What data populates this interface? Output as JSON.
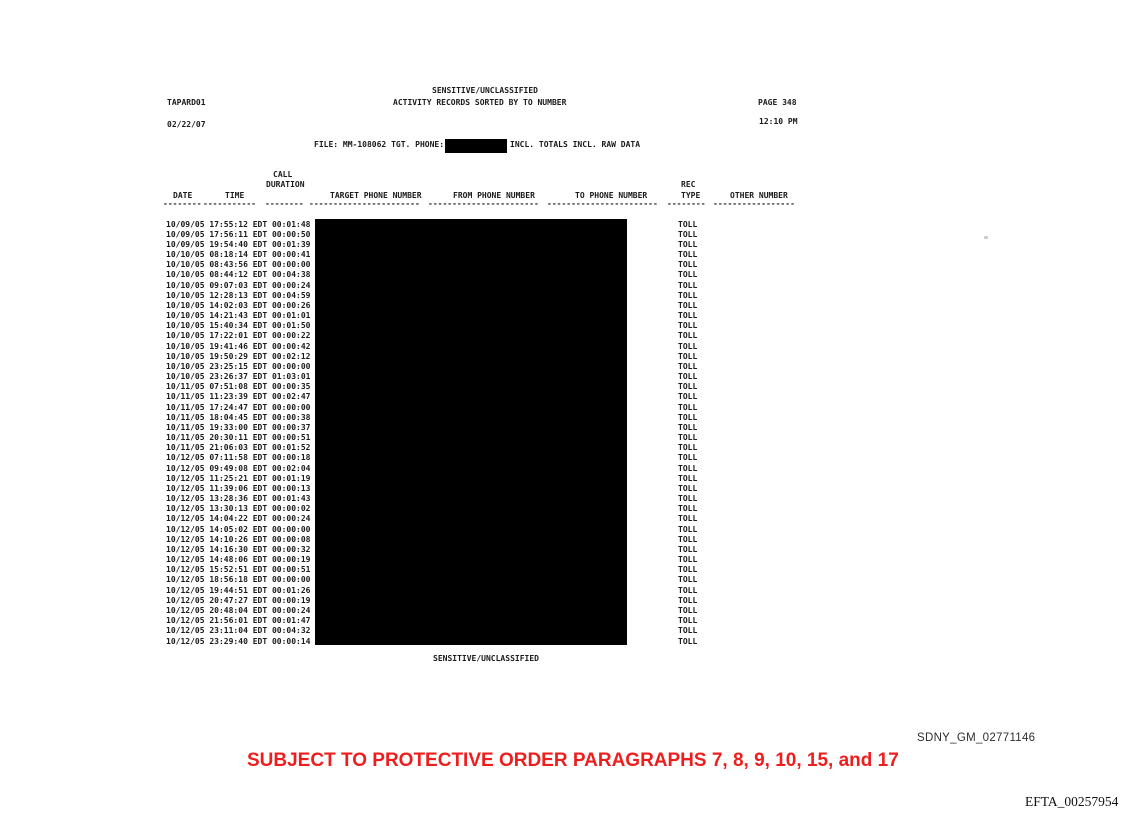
{
  "page": {
    "report_id": "TAPARD01",
    "classification_header": "SENSITIVE/UNCLASSIFIED",
    "title": "ACTIVITY RECORDS SORTED BY TO NUMBER",
    "page_number": "PAGE 348",
    "report_date": "02/22/07",
    "report_time": "12:10 PM",
    "file_info": "FILE: MM-108062 TGT. PHONE:",
    "file_info_after_redaction": "INCL. TOTALS INCL. RAW DATA",
    "classification_footer": "SENSITIVE/UNCLASSIFIED"
  },
  "table": {
    "headers": {
      "call_upper": "CALL",
      "duration": "DURATION",
      "rec_upper": "REC",
      "date": "DATE",
      "time": "TIME",
      "target_phone": "TARGET PHONE NUMBER",
      "from_phone": "FROM PHONE NUMBER",
      "to_phone": "TO PHONE NUMBER",
      "rec_type": "TYPE",
      "other_number": "OTHER NUMBER"
    },
    "separator_dashes": [
      "--------",
      "-----------",
      "--------",
      "-----------------------",
      "-----------------------",
      "-----------------------",
      "--------",
      "-----------------"
    ],
    "rows": [
      {
        "date": "10/09/05",
        "time": "17:55:12 EDT",
        "duration": "00:01:48",
        "rec_type": "TOLL"
      },
      {
        "date": "10/09/05",
        "time": "17:56:11 EDT",
        "duration": "00:00:50",
        "rec_type": "TOLL"
      },
      {
        "date": "10/09/05",
        "time": "19:54:40 EDT",
        "duration": "00:01:39",
        "rec_type": "TOLL"
      },
      {
        "date": "10/10/05",
        "time": "08:18:14 EDT",
        "duration": "00:00:41",
        "rec_type": "TOLL"
      },
      {
        "date": "10/10/05",
        "time": "08:43:56 EDT",
        "duration": "00:00:00",
        "rec_type": "TOLL"
      },
      {
        "date": "10/10/05",
        "time": "08:44:12 EDT",
        "duration": "00:04:38",
        "rec_type": "TOLL"
      },
      {
        "date": "10/10/05",
        "time": "09:07:03 EDT",
        "duration": "00:00:24",
        "rec_type": "TOLL"
      },
      {
        "date": "10/10/05",
        "time": "12:28:13 EDT",
        "duration": "00:04:59",
        "rec_type": "TOLL"
      },
      {
        "date": "10/10/05",
        "time": "14:02:03 EDT",
        "duration": "00:00:26",
        "rec_type": "TOLL"
      },
      {
        "date": "10/10/05",
        "time": "14:21:43 EDT",
        "duration": "00:01:01",
        "rec_type": "TOLL"
      },
      {
        "date": "10/10/05",
        "time": "15:40:34 EDT",
        "duration": "00:01:50",
        "rec_type": "TOLL"
      },
      {
        "date": "10/10/05",
        "time": "17:22:01 EDT",
        "duration": "00:00:22",
        "rec_type": "TOLL"
      },
      {
        "date": "10/10/05",
        "time": "19:41:46 EDT",
        "duration": "00:00:42",
        "rec_type": "TOLL"
      },
      {
        "date": "10/10/05",
        "time": "19:50:29 EDT",
        "duration": "00:02:12",
        "rec_type": "TOLL"
      },
      {
        "date": "10/10/05",
        "time": "23:25:15 EDT",
        "duration": "00:00:00",
        "rec_type": "TOLL"
      },
      {
        "date": "10/10/05",
        "time": "23:26:37 EDT",
        "duration": "01:03:01",
        "rec_type": "TOLL"
      },
      {
        "date": "10/11/05",
        "time": "07:51:08 EDT",
        "duration": "00:00:35",
        "rec_type": "TOLL"
      },
      {
        "date": "10/11/05",
        "time": "11:23:39 EDT",
        "duration": "00:02:47",
        "rec_type": "TOLL"
      },
      {
        "date": "10/11/05",
        "time": "17:24:47 EDT",
        "duration": "00:00:00",
        "rec_type": "TOLL"
      },
      {
        "date": "10/11/05",
        "time": "18:04:45 EDT",
        "duration": "00:00:38",
        "rec_type": "TOLL"
      },
      {
        "date": "10/11/05",
        "time": "19:33:00 EDT",
        "duration": "00:00:37",
        "rec_type": "TOLL"
      },
      {
        "date": "10/11/05",
        "time": "20:30:11 EDT",
        "duration": "00:00:51",
        "rec_type": "TOLL"
      },
      {
        "date": "10/11/05",
        "time": "21:06:03 EDT",
        "duration": "00:01:52",
        "rec_type": "TOLL"
      },
      {
        "date": "10/12/05",
        "time": "07:11:58 EDT",
        "duration": "00:00:18",
        "rec_type": "TOLL"
      },
      {
        "date": "10/12/05",
        "time": "09:49:08 EDT",
        "duration": "00:02:04",
        "rec_type": "TOLL"
      },
      {
        "date": "10/12/05",
        "time": "11:25:21 EDT",
        "duration": "00:01:19",
        "rec_type": "TOLL"
      },
      {
        "date": "10/12/05",
        "time": "11:39:06 EDT",
        "duration": "00:00:13",
        "rec_type": "TOLL"
      },
      {
        "date": "10/12/05",
        "time": "13:28:36 EDT",
        "duration": "00:01:43",
        "rec_type": "TOLL"
      },
      {
        "date": "10/12/05",
        "time": "13:30:13 EDT",
        "duration": "00:00:02",
        "rec_type": "TOLL"
      },
      {
        "date": "10/12/05",
        "time": "14:04:22 EDT",
        "duration": "00:00:24",
        "rec_type": "TOLL"
      },
      {
        "date": "10/12/05",
        "time": "14:05:02 EDT",
        "duration": "00:00:00",
        "rec_type": "TOLL"
      },
      {
        "date": "10/12/05",
        "time": "14:10:26 EDT",
        "duration": "00:00:08",
        "rec_type": "TOLL"
      },
      {
        "date": "10/12/05",
        "time": "14:16:30 EDT",
        "duration": "00:00:32",
        "rec_type": "TOLL"
      },
      {
        "date": "10/12/05",
        "time": "14:48:06 EDT",
        "duration": "00:00:19",
        "rec_type": "TOLL"
      },
      {
        "date": "10/12/05",
        "time": "15:52:51 EDT",
        "duration": "00:00:51",
        "rec_type": "TOLL"
      },
      {
        "date": "10/12/05",
        "time": "18:56:18 EDT",
        "duration": "00:00:00",
        "rec_type": "TOLL"
      },
      {
        "date": "10/12/05",
        "time": "19:44:51 EDT",
        "duration": "00:01:26",
        "rec_type": "TOLL"
      },
      {
        "date": "10/12/05",
        "time": "20:47:27 EDT",
        "duration": "00:00:19",
        "rec_type": "TOLL"
      },
      {
        "date": "10/12/05",
        "time": "20:48:04 EDT",
        "duration": "00:00:24",
        "rec_type": "TOLL"
      },
      {
        "date": "10/12/05",
        "time": "21:56:01 EDT",
        "duration": "00:01:47",
        "rec_type": "TOLL"
      },
      {
        "date": "10/12/05",
        "time": "23:11:04 EDT",
        "duration": "00:04:32",
        "rec_type": "TOLL"
      },
      {
        "date": "10/12/05",
        "time": "23:29:40 EDT",
        "duration": "00:00:14",
        "rec_type": "TOLL"
      }
    ]
  },
  "stamps": {
    "bates_sdny": "SDNY_GM_02771146",
    "protective_order": "SUBJECT TO PROTECTIVE ORDER PARAGRAPHS 7, 8, 9, 10, 15, and 17",
    "bates_efta": "EFTA_00257954"
  },
  "colors": {
    "ink": "#1a1a1a",
    "stamp_red": "#ee1e1e",
    "redaction": "#000000"
  }
}
